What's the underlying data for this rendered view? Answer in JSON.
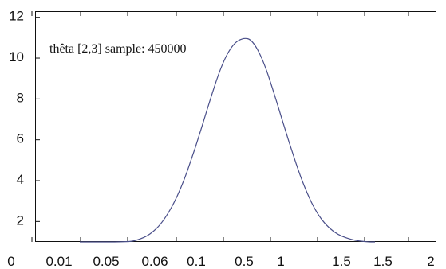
{
  "chart_data": {
    "type": "line",
    "title": "",
    "xlabel": "",
    "ylabel": "",
    "annotation": "thêta [2,3]  sample: 450000",
    "x_tick_labels": [
      "0",
      "0.01",
      "0.05",
      "0.06",
      "0.1",
      "0.5",
      "1",
      "1.5",
      "1.5",
      "2"
    ],
    "y_tick_labels": [
      "2",
      "4",
      "6",
      "8",
      "10",
      "12"
    ],
    "ylim": [
      1,
      12.3
    ],
    "grid": false,
    "series": [
      {
        "color": "#4a4f8a",
        "points": [
          [
            0,
            1.0
          ],
          [
            0.01,
            1.0
          ],
          [
            0.05,
            1.0
          ],
          [
            0.06,
            1.1
          ],
          [
            0.1,
            2.0
          ],
          [
            0.3,
            7.5
          ],
          [
            0.5,
            10.9
          ],
          [
            0.8,
            9.0
          ],
          [
            1,
            5.0
          ],
          [
            1.3,
            1.5
          ],
          [
            1.5,
            1.05
          ],
          [
            1.5,
            1.0
          ],
          [
            2,
            1.0
          ]
        ]
      }
    ],
    "colors": {
      "axis": "#111111",
      "line": "#4a4f8a",
      "background": "#ffffff"
    }
  }
}
